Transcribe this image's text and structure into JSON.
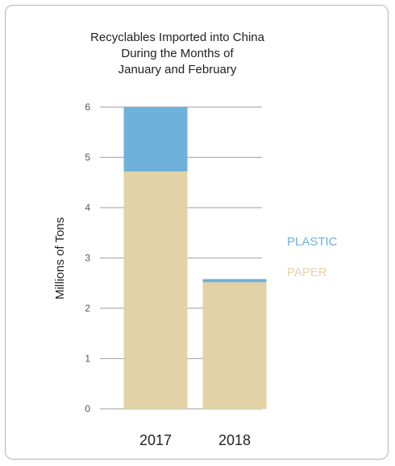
{
  "chart_data": {
    "type": "bar",
    "stacked": true,
    "title": "Recyclables Imported into China\nDuring the Months of\nJanuary and February",
    "xlabel": "",
    "ylabel": "Millions of Tons",
    "categories": [
      "2017",
      "2018"
    ],
    "series": [
      {
        "name": "PAPER",
        "values": [
          4.72,
          2.52
        ],
        "color": "#e2d2a5"
      },
      {
        "name": "PLASTIC",
        "values": [
          1.28,
          0.06
        ],
        "color": "#6eb1db"
      }
    ],
    "ylim": [
      0,
      6
    ],
    "yticks": [
      "0",
      "1",
      "2",
      "3",
      "4",
      "5",
      "6"
    ],
    "grid": true,
    "legend_position": "right",
    "legend_order": [
      "PLASTIC",
      "PAPER"
    ]
  }
}
